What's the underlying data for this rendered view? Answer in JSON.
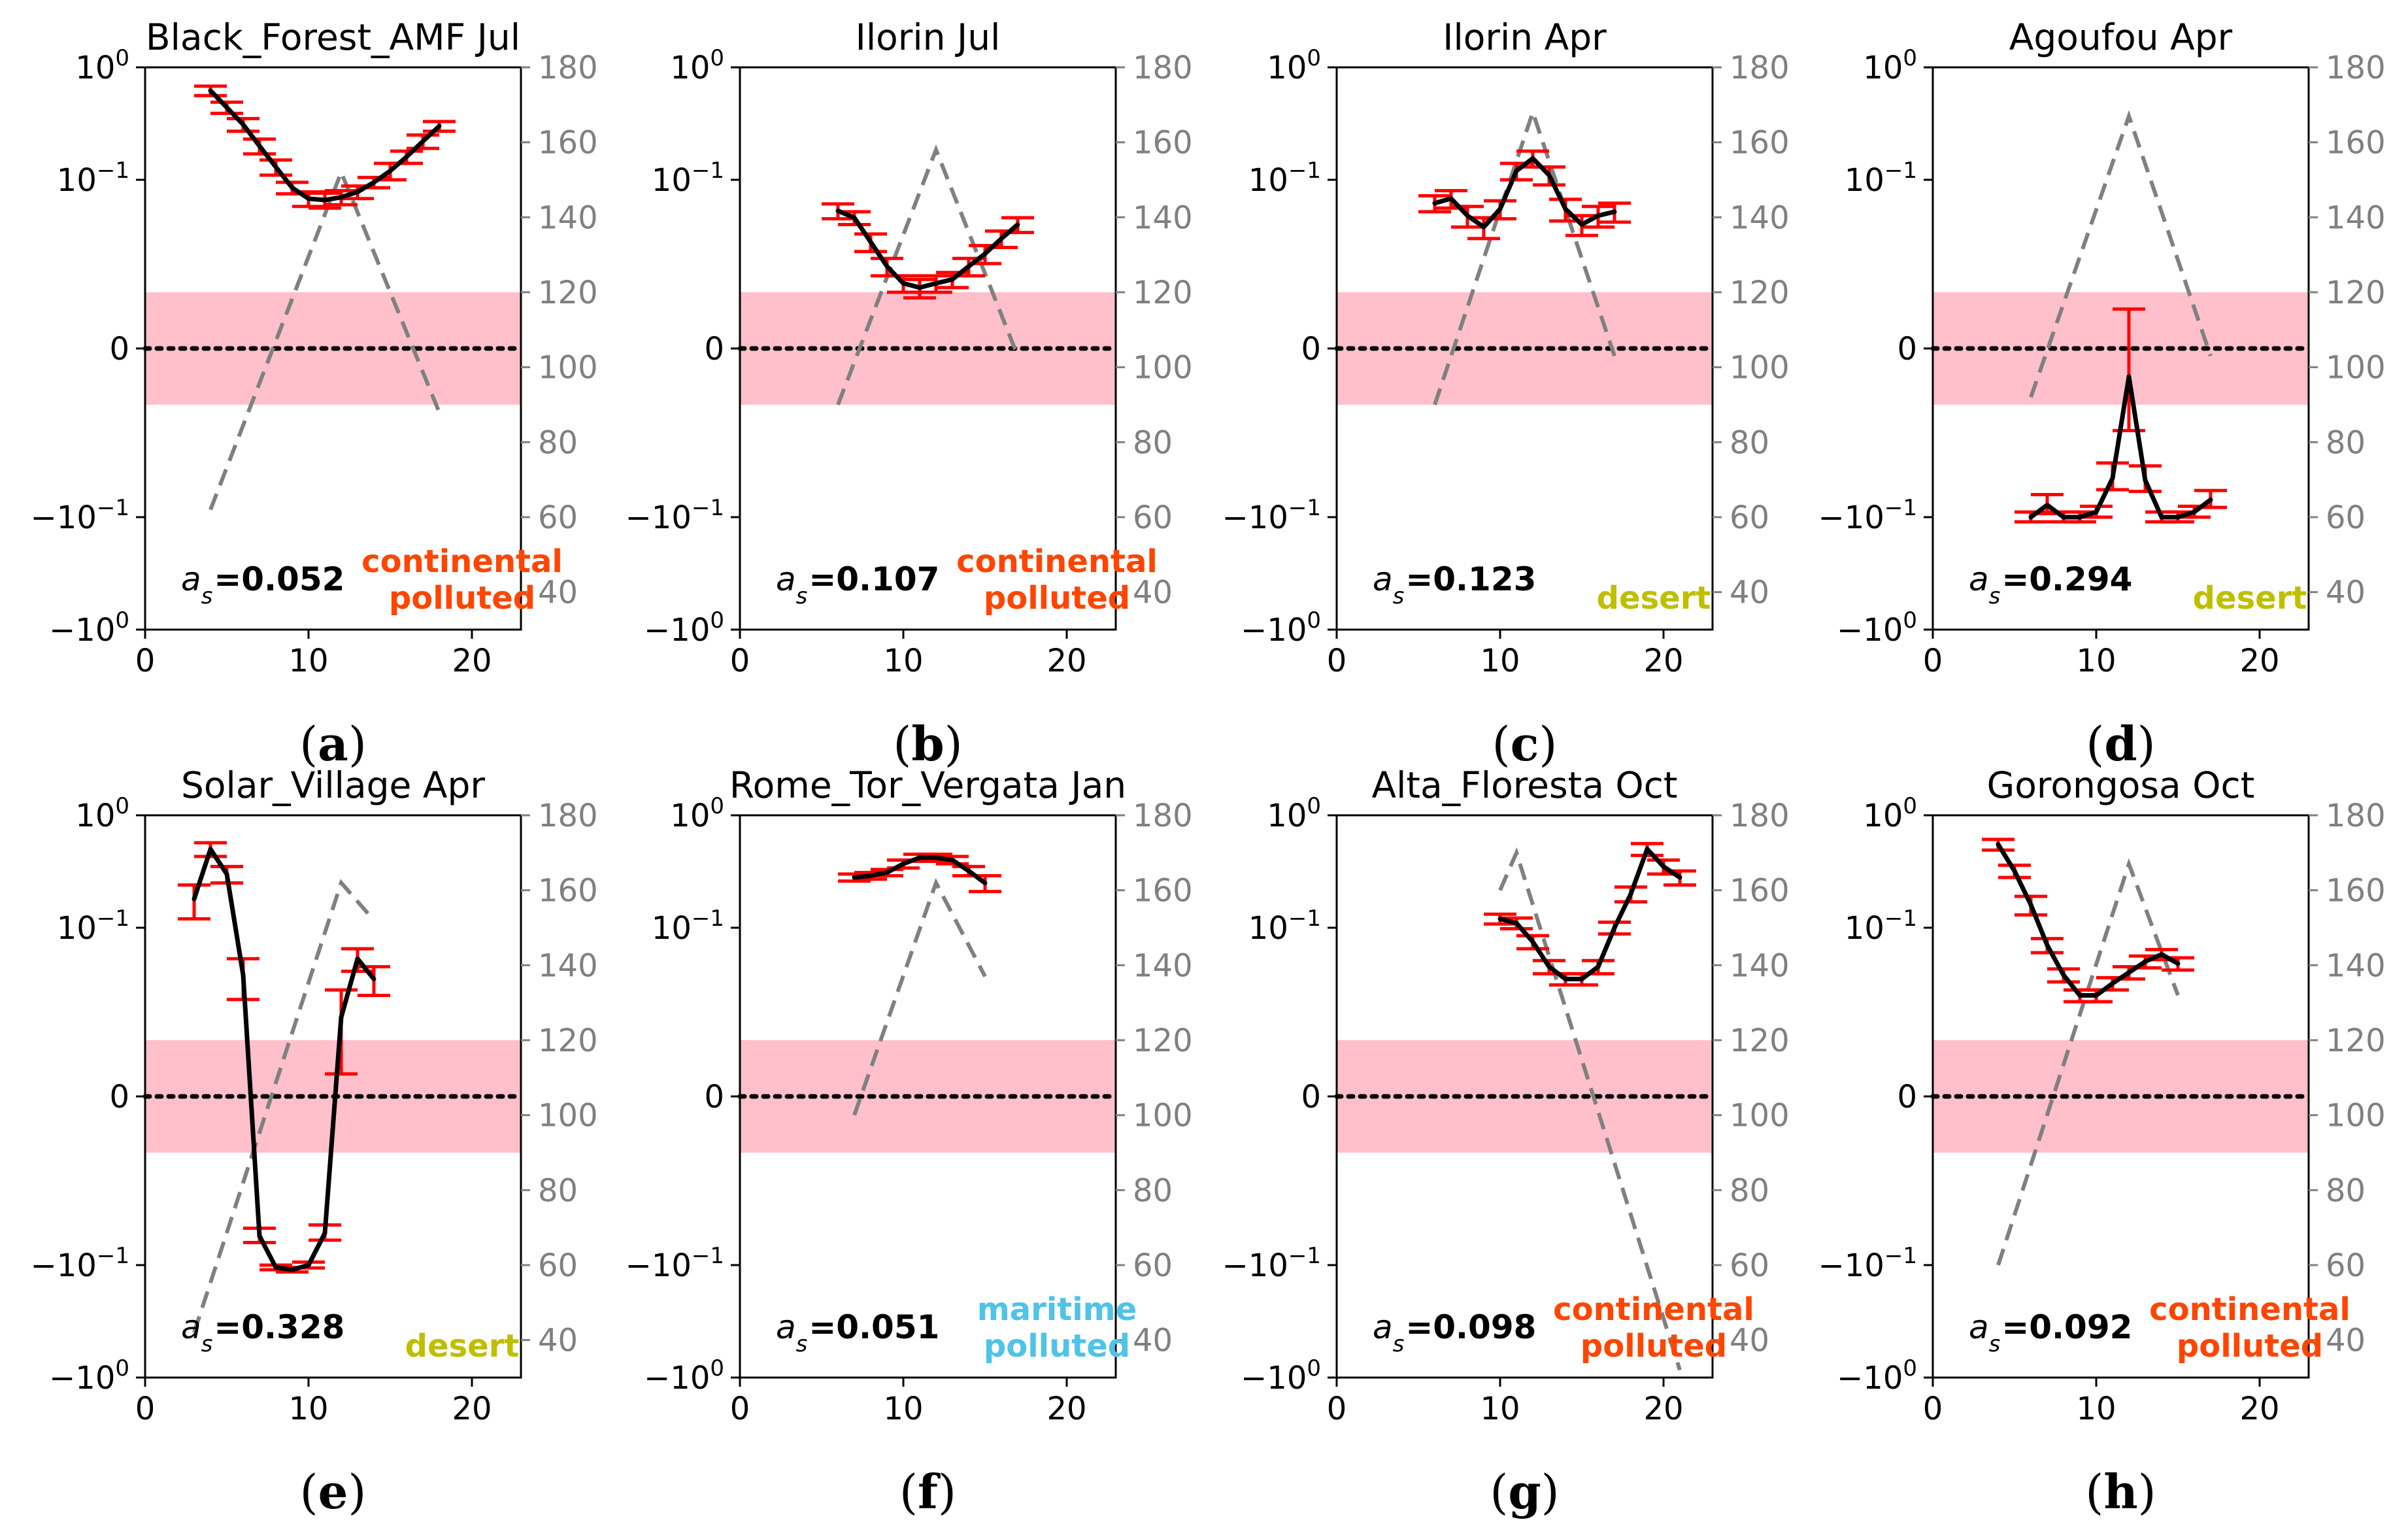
{
  "figure": {
    "panel_letters": [
      "a",
      "b",
      "c",
      "d",
      "e",
      "f",
      "g",
      "h"
    ],
    "colors": {
      "series_line": "#000000",
      "error_bars": "#ff0000",
      "dashed_curve": "#808080",
      "right_axis": "#808080",
      "shaded_band": "#ffc0cb",
      "zero_line": "#000000",
      "continental_polluted": "#ff4500",
      "desert": "#bfbf00",
      "maritime_polluted": "#4fc3e8"
    }
  },
  "chart_data": [
    {
      "type": "line",
      "title": "Black_Forest_AMF Jul",
      "panel": "a",
      "x_ticks": [
        "0",
        "10",
        "20"
      ],
      "xlim": [
        0,
        23
      ],
      "y_ticks": [
        "10^0",
        "10^-1",
        "0",
        "-10^-1",
        "-10^0"
      ],
      "ylim": [
        -1,
        1
      ],
      "y2_ticks": [
        "40",
        "60",
        "80",
        "100",
        "120",
        "140",
        "160",
        "180"
      ],
      "y2lim": [
        30,
        180
      ],
      "annotation_value": "0.052",
      "annotation_class": [
        "continental",
        "polluted"
      ],
      "class_color": "#ff4500",
      "series": [
        {
          "name": "value",
          "x": [
            4,
            5,
            6,
            7,
            8,
            9,
            10,
            11,
            12,
            13,
            14,
            15,
            16,
            17,
            18
          ],
          "values": [
            0.62,
            0.44,
            0.31,
            0.2,
            0.13,
            0.085,
            0.068,
            0.066,
            0.07,
            0.078,
            0.095,
            0.12,
            0.16,
            0.22,
            0.3
          ],
          "error": [
            0.06,
            0.05,
            0.04,
            0.03,
            0.02,
            0.01,
            0.01,
            0.01,
            0.01,
            0.01,
            0.01,
            0.02,
            0.02,
            0.03,
            0.03
          ]
        }
      ],
      "dashed_series": {
        "name": "secondary",
        "x": [
          4,
          12,
          18
        ],
        "values": [
          62,
          152,
          88
        ]
      }
    },
    {
      "type": "line",
      "title": "Ilorin Jul",
      "panel": "b",
      "x_ticks": [
        "0",
        "10",
        "20"
      ],
      "xlim": [
        0,
        23
      ],
      "y_ticks": [
        "10^0",
        "10^-1",
        "0",
        "-10^-1",
        "-10^0"
      ],
      "ylim": [
        -1,
        1
      ],
      "y2_ticks": [
        "40",
        "60",
        "80",
        "100",
        "120",
        "140",
        "160",
        "180"
      ],
      "y2lim": [
        30,
        180
      ],
      "annotation_value": "0.107",
      "annotation_class": [
        "continental",
        "polluted"
      ],
      "class_color": "#ff4500",
      "series": [
        {
          "name": "value",
          "x": [
            6,
            7,
            8,
            9,
            10,
            11,
            12,
            13,
            14,
            15,
            16,
            17
          ],
          "values": [
            0.053,
            0.046,
            0.028,
            0.017,
            0.012,
            0.011,
            0.012,
            0.013,
            0.017,
            0.022,
            0.03,
            0.04
          ],
          "error": [
            0.008,
            0.006,
            0.005,
            0.003,
            0.002,
            0.002,
            0.002,
            0.002,
            0.003,
            0.004,
            0.005,
            0.006
          ]
        }
      ],
      "dashed_series": {
        "name": "secondary",
        "x": [
          6,
          12,
          17
        ],
        "values": [
          90,
          158,
          103
        ]
      }
    },
    {
      "type": "line",
      "title": "Ilorin Apr",
      "panel": "c",
      "x_ticks": [
        "0",
        "10",
        "20"
      ],
      "xlim": [
        0,
        23
      ],
      "y_ticks": [
        "10^0",
        "10^-1",
        "0",
        "-10^-1",
        "-10^0"
      ],
      "ylim": [
        -1,
        1
      ],
      "y2_ticks": [
        "40",
        "60",
        "80",
        "100",
        "120",
        "140",
        "160",
        "180"
      ],
      "y2lim": [
        30,
        180
      ],
      "annotation_value": "0.123",
      "annotation_class": [
        "desert"
      ],
      "class_color": "#bfbf00",
      "series": [
        {
          "name": "value",
          "x": [
            6,
            7,
            8,
            9,
            10,
            11,
            12,
            13,
            14,
            15,
            16,
            17
          ],
          "values": [
            0.062,
            0.068,
            0.048,
            0.038,
            0.055,
            0.12,
            0.155,
            0.11,
            0.055,
            0.04,
            0.048,
            0.052
          ],
          "error": [
            0.01,
            0.012,
            0.01,
            0.008,
            0.01,
            0.02,
            0.025,
            0.02,
            0.012,
            0.008,
            0.01,
            0.01
          ]
        }
      ],
      "dashed_series": {
        "name": "secondary",
        "x": [
          6,
          12,
          17
        ],
        "values": [
          90,
          168,
          103
        ]
      }
    },
    {
      "type": "line",
      "title": "Agoufou Apr",
      "panel": "d",
      "x_ticks": [
        "0",
        "10",
        "20"
      ],
      "xlim": [
        0,
        23
      ],
      "y_ticks": [
        "10^0",
        "10^-1",
        "0",
        "-10^-1",
        "-10^0"
      ],
      "ylim": [
        -1,
        1
      ],
      "y2_ticks": [
        "40",
        "60",
        "80",
        "100",
        "120",
        "140",
        "160",
        "180"
      ],
      "y2lim": [
        30,
        180
      ],
      "annotation_value": "0.294",
      "annotation_class": [
        "desert"
      ],
      "class_color": "#bfbf00",
      "series": [
        {
          "name": "value",
          "x": [
            6,
            7,
            8,
            9,
            10,
            11,
            12,
            13,
            14,
            15,
            16,
            17
          ],
          "values": [
            -0.1,
            -0.078,
            -0.1,
            -0.1,
            -0.09,
            -0.045,
            -0.005,
            -0.047,
            -0.1,
            -0.1,
            -0.09,
            -0.07
          ],
          "error": [
            0.01,
            0.015,
            0.01,
            0.01,
            0.01,
            0.012,
            0.012,
            0.012,
            0.01,
            0.01,
            0.01,
            0.012
          ]
        }
      ],
      "dashed_series": {
        "name": "secondary",
        "x": [
          6,
          12,
          17
        ],
        "values": [
          92,
          167,
          103
        ]
      }
    },
    {
      "type": "line",
      "title": "Solar_Village Apr",
      "panel": "e",
      "x_ticks": [
        "0",
        "10",
        "20"
      ],
      "xlim": [
        0,
        23
      ],
      "y_ticks": [
        "10^0",
        "10^-1",
        "0",
        "-10^-1",
        "-10^0"
      ],
      "ylim": [
        -1,
        1
      ],
      "y2_ticks": [
        "40",
        "60",
        "80",
        "100",
        "120",
        "140",
        "160",
        "180"
      ],
      "y2lim": [
        30,
        180
      ],
      "annotation_value": "0.328",
      "annotation_class": [
        "desert"
      ],
      "class_color": "#bfbf00",
      "series": [
        {
          "name": "value",
          "x": [
            3,
            4,
            5,
            6,
            7,
            8,
            9,
            10,
            11,
            12,
            13,
            14
          ],
          "values": [
            0.18,
            0.5,
            0.3,
            0.038,
            -0.055,
            -0.105,
            -0.11,
            -0.1,
            -0.052,
            0.016,
            0.053,
            0.035
          ],
          "error": [
            0.06,
            0.07,
            0.05,
            0.015,
            0.008,
            0.005,
            0.005,
            0.006,
            0.008,
            0.012,
            0.012,
            0.01
          ]
        }
      ],
      "dashed_series": {
        "name": "secondary",
        "x": [
          3,
          12,
          14
        ],
        "values": [
          42,
          162,
          152
        ]
      }
    },
    {
      "type": "line",
      "title": "Rome_Tor_Vergata Jan",
      "panel": "f",
      "x_ticks": [
        "0",
        "10",
        "20"
      ],
      "xlim": [
        0,
        23
      ],
      "y_ticks": [
        "10^0",
        "10^-1",
        "0",
        "-10^-1",
        "-10^0"
      ],
      "ylim": [
        -1,
        1
      ],
      "y2_ticks": [
        "40",
        "60",
        "80",
        "100",
        "120",
        "140",
        "160",
        "180"
      ],
      "y2lim": [
        30,
        180
      ],
      "annotation_value": "0.051",
      "annotation_class": [
        "maritime",
        "polluted"
      ],
      "class_color": "#4fc3e8",
      "series": [
        {
          "name": "value",
          "x": [
            7,
            8,
            9,
            10,
            11,
            12,
            13,
            14,
            15
          ],
          "values": [
            0.28,
            0.29,
            0.31,
            0.37,
            0.42,
            0.42,
            0.4,
            0.32,
            0.25
          ],
          "error": [
            0.02,
            0.02,
            0.02,
            0.03,
            0.03,
            0.03,
            0.03,
            0.03,
            0.04
          ]
        }
      ],
      "dashed_series": {
        "name": "secondary",
        "x": [
          7,
          12,
          15
        ],
        "values": [
          100,
          162,
          137
        ]
      }
    },
    {
      "type": "line",
      "title": "Alta_Floresta Oct",
      "panel": "g",
      "x_ticks": [
        "0",
        "10",
        "20"
      ],
      "xlim": [
        0,
        23
      ],
      "y_ticks": [
        "10^0",
        "10^-1",
        "0",
        "-10^-1",
        "-10^0"
      ],
      "ylim": [
        -1,
        1
      ],
      "y2_ticks": [
        "40",
        "60",
        "80",
        "100",
        "120",
        "140",
        "160",
        "180"
      ],
      "y2lim": [
        30,
        180
      ],
      "annotation_value": "0.098",
      "annotation_class": [
        "continental",
        "polluted"
      ],
      "class_color": "#ff4500",
      "series": [
        {
          "name": "value",
          "x": [
            10,
            11,
            12,
            13,
            14,
            15,
            16,
            17,
            18,
            19,
            20,
            21
          ],
          "values": [
            0.12,
            0.11,
            0.075,
            0.045,
            0.035,
            0.035,
            0.045,
            0.1,
            0.2,
            0.5,
            0.35,
            0.28
          ],
          "error": [
            0.012,
            0.012,
            0.01,
            0.006,
            0.004,
            0.004,
            0.006,
            0.012,
            0.03,
            0.06,
            0.05,
            0.04
          ]
        }
      ],
      "dashed_series": {
        "name": "secondary",
        "x": [
          10,
          11,
          21
        ],
        "values": [
          160,
          170,
          32
        ]
      }
    },
    {
      "type": "line",
      "title": "Gorongosa Oct",
      "panel": "h",
      "x_ticks": [
        "0",
        "10",
        "20"
      ],
      "xlim": [
        0,
        23
      ],
      "y_ticks": [
        "10^0",
        "10^-1",
        "0",
        "-10^-1",
        "-10^0"
      ],
      "ylim": [
        -1,
        1
      ],
      "y2_ticks": [
        "40",
        "60",
        "80",
        "100",
        "120",
        "140",
        "160",
        "180"
      ],
      "y2lim": [
        30,
        180
      ],
      "annotation_value": "0.092",
      "annotation_class": [
        "continental",
        "polluted"
      ],
      "class_color": "#ff4500",
      "series": [
        {
          "name": "value",
          "x": [
            4,
            5,
            6,
            7,
            8,
            9,
            10,
            11,
            12,
            13,
            14,
            15
          ],
          "values": [
            0.55,
            0.32,
            0.16,
            0.07,
            0.038,
            0.025,
            0.025,
            0.032,
            0.04,
            0.05,
            0.058,
            0.048
          ],
          "error": [
            0.06,
            0.04,
            0.03,
            0.01,
            0.005,
            0.003,
            0.003,
            0.004,
            0.005,
            0.006,
            0.006,
            0.006
          ]
        }
      ],
      "dashed_series": {
        "name": "secondary",
        "x": [
          4,
          12,
          15
        ],
        "values": [
          60,
          167,
          132
        ]
      }
    }
  ]
}
